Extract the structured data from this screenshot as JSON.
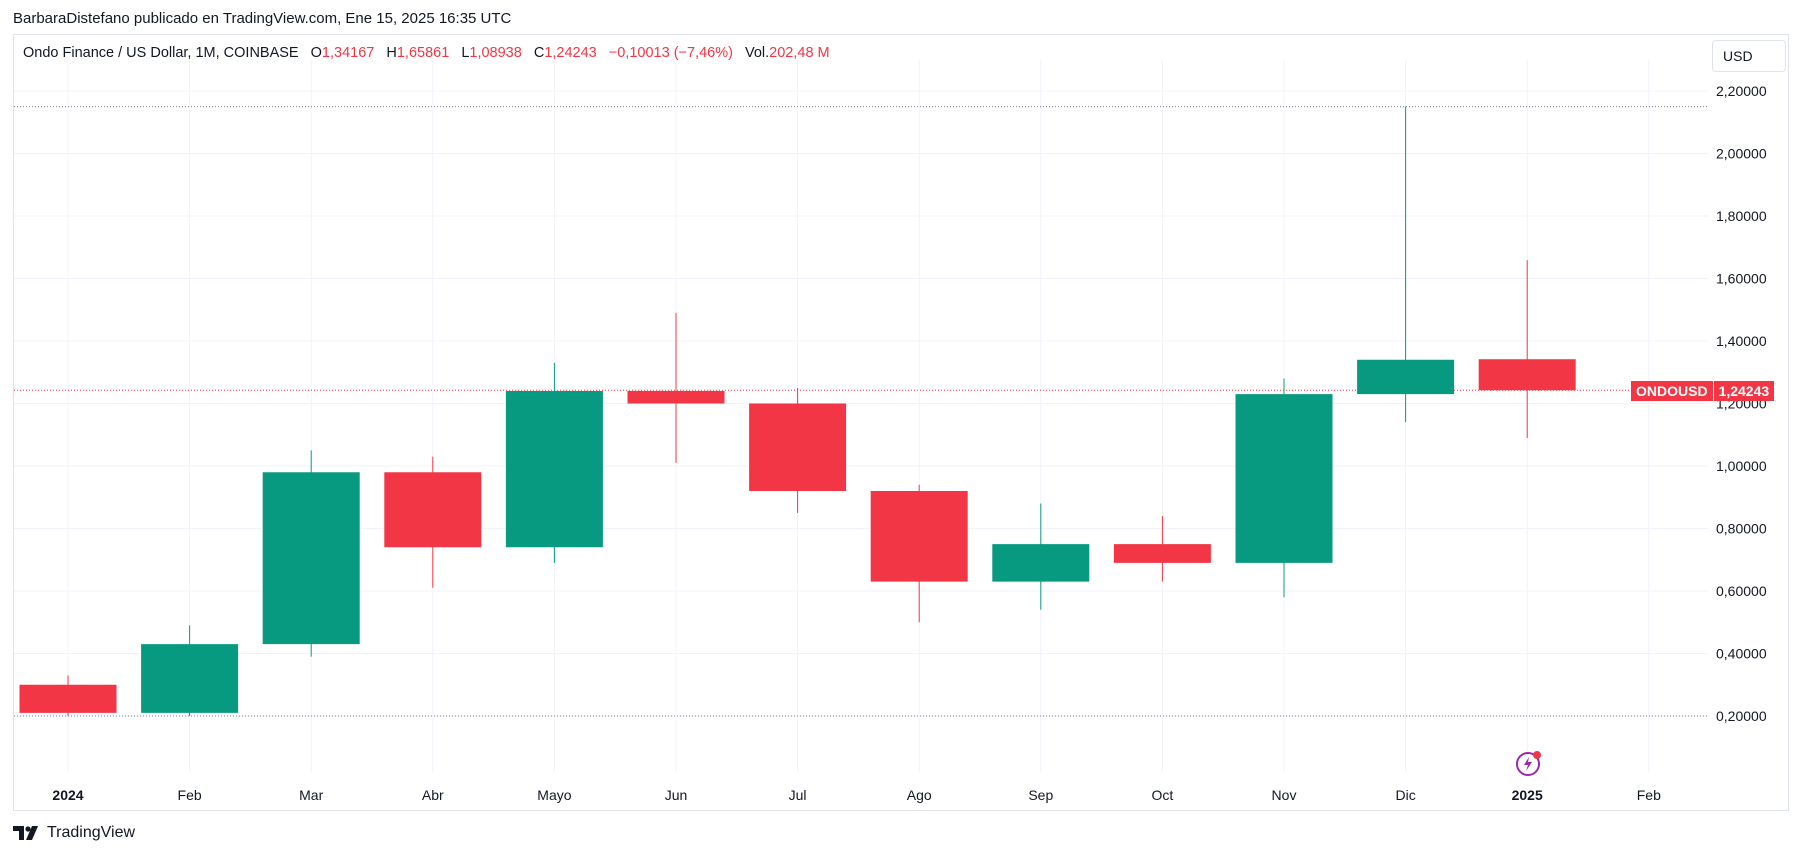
{
  "header": {
    "published_by": "BarbaraDistefano publicado en TradingView.com, Ene 15, 2025 16:35 UTC"
  },
  "legend": {
    "symbol": "Ondo Finance / US Dollar, 1M, COINBASE",
    "o_label": "O",
    "o_value": "1,34167",
    "h_label": "H",
    "h_value": "1,65861",
    "l_label": "L",
    "l_value": "1,08938",
    "c_label": "C",
    "c_value": "1,24243",
    "change": "−0,10013 (−7,46%)",
    "vol_label": "Vol.",
    "vol_value": "202,48 M"
  },
  "currency_button": "USD",
  "last_price": {
    "symbol": "ONDOUSD",
    "value": "1,24243"
  },
  "brand": {
    "name": "TradingView"
  },
  "colors": {
    "up": "#089981",
    "down": "#f23645",
    "grid": "#f0f3fa",
    "text": "#131722"
  },
  "chart_data": {
    "type": "candlestick",
    "interval": "1M",
    "x_tick_labels": [
      "2024",
      "Feb",
      "Mar",
      "Abr",
      "Mayo",
      "Jun",
      "Jul",
      "Ago",
      "Sep",
      "Oct",
      "Nov",
      "Dic",
      "2025",
      "Feb"
    ],
    "x_tick_bold": [
      true,
      false,
      false,
      false,
      false,
      false,
      false,
      false,
      false,
      false,
      false,
      false,
      true,
      false
    ],
    "y_tick_labels": [
      "2,20000",
      "2,00000",
      "1,80000",
      "1,60000",
      "1,40000",
      "1,20000",
      "1,00000",
      "0,80000",
      "0,60000",
      "0,40000",
      "0,20000"
    ],
    "y_tick_values": [
      2.2,
      2.0,
      1.8,
      1.6,
      1.4,
      1.2,
      1.0,
      0.8,
      0.6,
      0.4,
      0.2
    ],
    "ylim": [
      0.0,
      2.3
    ],
    "candles": [
      {
        "month": "2024",
        "o": 0.3,
        "h": 0.33,
        "l": 0.2,
        "c": 0.21
      },
      {
        "month": "Feb",
        "o": 0.21,
        "h": 0.49,
        "l": 0.2,
        "c": 0.43
      },
      {
        "month": "Mar",
        "o": 0.43,
        "h": 1.05,
        "l": 0.39,
        "c": 0.98
      },
      {
        "month": "Abr",
        "o": 0.98,
        "h": 1.03,
        "l": 0.61,
        "c": 0.74
      },
      {
        "month": "Mayo",
        "o": 0.74,
        "h": 1.33,
        "l": 0.69,
        "c": 1.24
      },
      {
        "month": "Jun",
        "o": 1.24,
        "h": 1.49,
        "l": 1.01,
        "c": 1.2
      },
      {
        "month": "Jul",
        "o": 1.2,
        "h": 1.25,
        "l": 0.85,
        "c": 0.92
      },
      {
        "month": "Ago",
        "o": 0.92,
        "h": 0.94,
        "l": 0.5,
        "c": 0.63
      },
      {
        "month": "Sep",
        "o": 0.63,
        "h": 0.88,
        "l": 0.54,
        "c": 0.75
      },
      {
        "month": "Oct",
        "o": 0.75,
        "h": 0.84,
        "l": 0.63,
        "c": 0.69
      },
      {
        "month": "Nov",
        "o": 0.69,
        "h": 1.28,
        "l": 0.58,
        "c": 1.23
      },
      {
        "month": "Dic",
        "o": 1.23,
        "h": 2.15,
        "l": 1.14,
        "c": 1.34
      },
      {
        "month": "2025",
        "o": 1.34167,
        "h": 1.65861,
        "l": 1.08938,
        "c": 1.24243
      }
    ],
    "high_line": 2.15,
    "low_line": 0.2,
    "last_price_line": 1.24243,
    "grid": true
  }
}
